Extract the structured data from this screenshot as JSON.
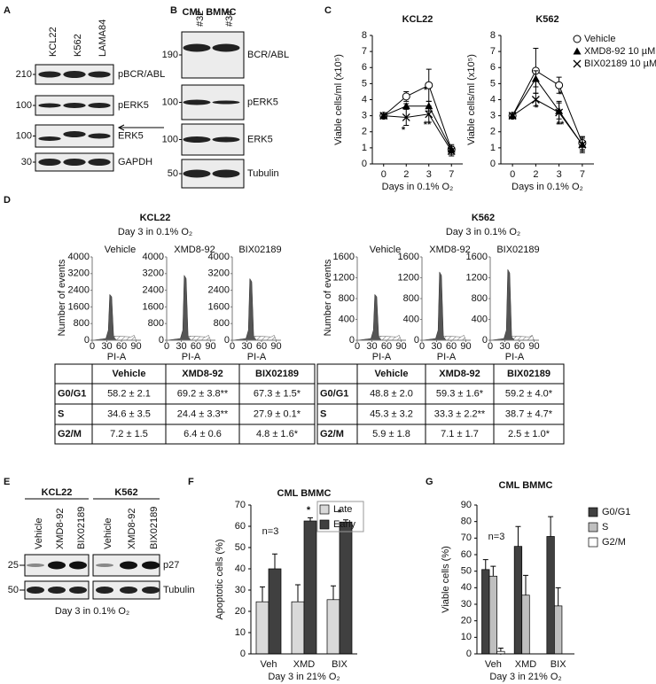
{
  "figure_labels": [
    "A",
    "B",
    "C",
    "D",
    "E",
    "F",
    "G"
  ],
  "blot_a": {
    "lanes": [
      "KCL22",
      "K562",
      "LAMA84"
    ],
    "rows": [
      {
        "marker": 210,
        "label": "pBCR/ABL"
      },
      {
        "marker": 100,
        "label": "pERK5"
      },
      {
        "marker": 100,
        "label": "ERK5"
      },
      {
        "marker": 30,
        "label": "GAPDH"
      }
    ]
  },
  "blot_b": {
    "title": "CML BMMC",
    "lanes": [
      "#32",
      "#34"
    ],
    "rows": [
      {
        "marker": 190,
        "label": "BCR/ABL"
      },
      {
        "marker": 100,
        "label": "pERK5"
      },
      {
        "marker": 100,
        "label": "ERK5"
      },
      {
        "marker": 50,
        "label": "Tubulin"
      }
    ]
  },
  "chart_data": [
    {
      "type": "line",
      "title": "KCL22",
      "y_label": "Viable cells/ml (x10⁵)",
      "x_label": "Days in 0.1% O₂",
      "categories": [
        "0",
        "2",
        "3",
        "7"
      ],
      "ylim": [
        0,
        8
      ],
      "yticks": [
        0,
        1,
        2,
        3,
        4,
        5,
        6,
        7,
        8
      ],
      "series": [
        {
          "marker": "open-circle",
          "color": "#000000",
          "values": [
            3,
            4.2,
            4.9,
            0.9
          ],
          "errors": [
            0.1,
            0.3,
            1.0,
            0.3
          ]
        },
        {
          "marker": "triangle",
          "color": "#000000",
          "values": [
            3,
            3.6,
            3.6,
            0.9
          ],
          "errors": [
            0.1,
            0.15,
            0.3,
            0.2
          ]
        },
        {
          "marker": "x",
          "color": "#000000",
          "values": [
            3,
            2.9,
            3.1,
            0.8
          ],
          "errors": [
            0.1,
            0.5,
            0.5,
            0.3
          ]
        }
      ],
      "annotations": [
        "*",
        "**",
        "*"
      ]
    },
    {
      "type": "line",
      "title": "K562",
      "y_label": "Viable cells/ml (x10⁵)",
      "x_label": "Days in 0.1% O₂",
      "categories": [
        "0",
        "2",
        "3",
        "7"
      ],
      "ylim": [
        0,
        8
      ],
      "yticks": [
        0,
        1,
        2,
        3,
        4,
        5,
        6,
        7,
        8
      ],
      "legend": "upper right",
      "series": [
        {
          "name": "Vehicle",
          "marker": "open-circle",
          "color": "#000000",
          "values": [
            3,
            5.8,
            4.9,
            1.3
          ],
          "errors": [
            0.1,
            1.4,
            0.5,
            0.4
          ]
        },
        {
          "name": "XMD8-92 10 µM",
          "marker": "triangle",
          "color": "#000000",
          "values": [
            3,
            5.3,
            3.3,
            1.2
          ],
          "errors": [
            0.1,
            0.5,
            0.5,
            0.4
          ]
        },
        {
          "name": "BIX02189 10 µM",
          "marker": "x",
          "color": "#000000",
          "values": [
            3,
            4.0,
            3.2,
            1.2
          ],
          "errors": [
            0.1,
            0.4,
            0.7,
            0.5
          ]
        }
      ],
      "annotations": [
        "*",
        "*",
        "**"
      ]
    },
    {
      "type": "bar",
      "title": "CML BMMC",
      "y_label": "Apoptotic cells (%)",
      "x_label": "Day 3 in 21% O₂",
      "categories": [
        "Veh",
        "XMD",
        "BIX"
      ],
      "ylim": [
        0,
        70
      ],
      "yticks": [
        0,
        10,
        20,
        30,
        40,
        50,
        60,
        70
      ],
      "legend": "upper right",
      "series": [
        {
          "name": "Late",
          "color": "#d9d9d9",
          "values": [
            24.5,
            24.5,
            25.5
          ],
          "errors": [
            7,
            8,
            6.5
          ]
        },
        {
          "name": "Early",
          "color": "#404040",
          "values": [
            40,
            62.5,
            62
          ],
          "errors": [
            7,
            1.5,
            1
          ]
        }
      ],
      "annotations": [
        "n=3",
        "*",
        "*"
      ]
    },
    {
      "type": "bar",
      "title": "CML BMMC",
      "y_label": "Viable cells (%)",
      "x_label": "Day 3 in 21% O₂",
      "categories": [
        "Veh",
        "XMD",
        "BIX"
      ],
      "ylim": [
        0,
        90
      ],
      "yticks": [
        0,
        10,
        20,
        30,
        40,
        50,
        60,
        70,
        80,
        90
      ],
      "legend": "right",
      "series": [
        {
          "name": "G0/G1",
          "color": "#404040",
          "values": [
            51,
            65,
            71
          ],
          "errors": [
            6,
            12,
            12
          ]
        },
        {
          "name": "S",
          "color": "#bfbfbf",
          "values": [
            47,
            35.5,
            29
          ],
          "errors": [
            6,
            12,
            11
          ]
        },
        {
          "name": "G2/M",
          "color": "#ffffff",
          "values": [
            1.5,
            0,
            0
          ],
          "errors": [
            2,
            0,
            0
          ]
        }
      ],
      "annotations": [
        "n=3"
      ]
    }
  ],
  "flow_d": [
    {
      "title": "KCL22",
      "subtitle": "Day 3 in 0.1% O₂",
      "conditions": [
        "Vehicle",
        "XMD8-92",
        "BIX02189"
      ],
      "y_label": "Number of events",
      "x_label": "PI-A",
      "ylim": [
        0,
        4000
      ],
      "yticks": [
        0,
        800,
        1600,
        2400,
        3200,
        4000
      ],
      "xlim": [
        0,
        100
      ],
      "xticks": [
        0,
        30,
        60,
        90
      ],
      "table": {
        "columns": [
          "Vehicle",
          "XMD8-92",
          "BIX02189"
        ],
        "rows": [
          {
            "label": "G0/G1",
            "cells": [
              "58.2 ± 2.1",
              "69.2 ± 3.8**",
              "67.3 ± 1.5*"
            ]
          },
          {
            "label": "S",
            "cells": [
              "34.6 ± 3.5",
              "24.4 ± 3.3**",
              "27.9 ± 0.1*"
            ]
          },
          {
            "label": "G2/M",
            "cells": [
              "7.2 ± 1.5",
              "6.4 ± 0.6",
              "4.8 ± 1.6*"
            ]
          }
        ]
      }
    },
    {
      "title": "K562",
      "subtitle": "Day 3 in 0.1% O₂",
      "conditions": [
        "Vehicle",
        "XMD8-92",
        "BIX02189"
      ],
      "y_label": "Number of events",
      "x_label": "PI-A",
      "ylim": [
        0,
        1600
      ],
      "yticks": [
        0,
        400,
        800,
        1200,
        1600
      ],
      "xlim": [
        0,
        100
      ],
      "xticks": [
        0,
        30,
        60,
        90
      ],
      "table": {
        "columns": [
          "Vehicle",
          "XMD8-92",
          "BIX02189"
        ],
        "rows": [
          {
            "label": "G0/G1",
            "cells": [
              "48.8 ± 2.0",
              "59.3 ± 1.6*",
              "59.2 ± 4.0*"
            ]
          },
          {
            "label": "S",
            "cells": [
              "45.3 ± 3.2",
              "33.3 ± 2.2**",
              "38.7 ± 4.7*"
            ]
          },
          {
            "label": "G2/M",
            "cells": [
              "5.9 ± 1.8",
              "7.1 ± 1.7",
              "2.5 ± 1.0*"
            ]
          }
        ]
      }
    }
  ],
  "blot_e": {
    "groups": [
      {
        "name": "KCL22",
        "lanes": [
          "Vehicle",
          "XMD8-92",
          "BIX02189"
        ]
      },
      {
        "name": "K562",
        "lanes": [
          "Vehicle",
          "XMD8-92",
          "BIX02189"
        ]
      }
    ],
    "rows": [
      {
        "marker": 25,
        "label": "p27"
      },
      {
        "marker": 50,
        "label": "Tubulin"
      }
    ],
    "caption": "Day 3 in 0.1% O₂"
  }
}
